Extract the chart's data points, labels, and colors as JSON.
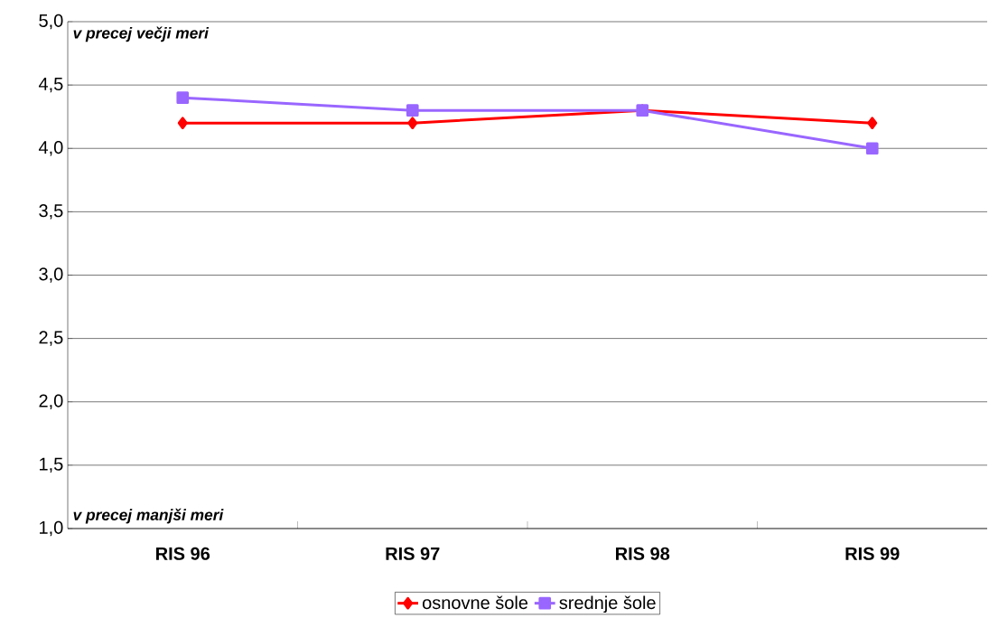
{
  "chart_data": {
    "type": "line",
    "categories": [
      "RIS 96",
      "RIS 97",
      "RIS 98",
      "RIS 99"
    ],
    "series": [
      {
        "name": "osnovne šole",
        "color": "#ff0000",
        "marker": "diamond",
        "values": [
          4.2,
          4.2,
          4.3,
          4.2
        ]
      },
      {
        "name": "srednje šole",
        "color": "#9966ff",
        "marker": "square",
        "values": [
          4.4,
          4.3,
          4.3,
          4.0
        ]
      }
    ],
    "ylim": [
      1.0,
      5.0
    ],
    "yticks": [
      {
        "value": 1.0,
        "label": "1,0"
      },
      {
        "value": 1.5,
        "label": "1,5"
      },
      {
        "value": 2.0,
        "label": "2,0"
      },
      {
        "value": 2.5,
        "label": "2,5"
      },
      {
        "value": 3.0,
        "label": "3,0"
      },
      {
        "value": 3.5,
        "label": "3,5"
      },
      {
        "value": 4.0,
        "label": "4,0"
      },
      {
        "value": 4.5,
        "label": "4,5"
      },
      {
        "value": 5.0,
        "label": "5,0"
      }
    ],
    "annotations": [
      "v precej večji meri",
      "v precej manjši meri"
    ],
    "grid": "y",
    "legend": "bottom",
    "line_style": "solid"
  }
}
